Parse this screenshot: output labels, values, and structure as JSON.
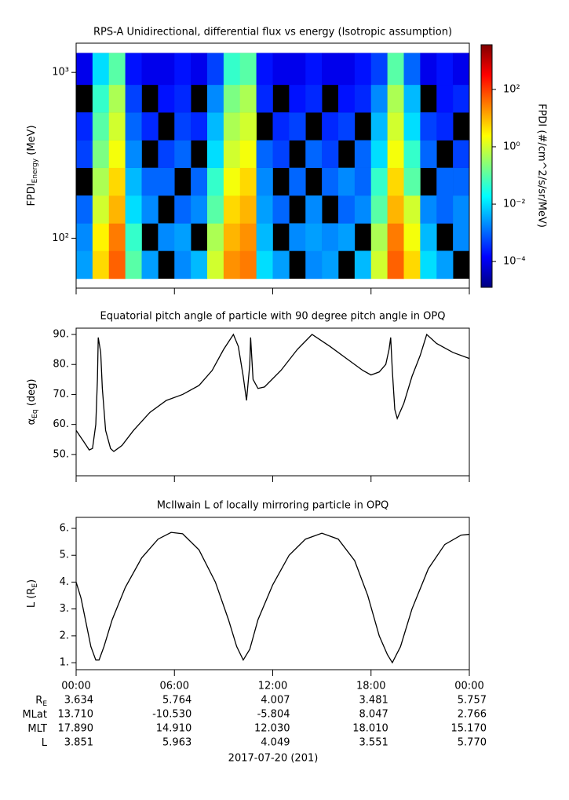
{
  "chart_data": [
    {
      "type": "heatmap",
      "title": "RPS-A Unidirectional, differential flux vs energy (Isotropic assumption)",
      "ylabel": "FPDI",
      "ylabel_sub": "Energy",
      "ylabel_tail": " (MeV)",
      "xlim": [
        0,
        24
      ],
      "xticks": [
        0,
        6,
        12,
        18,
        24
      ],
      "ylim": [
        50,
        1500
      ],
      "ylog": true,
      "yticks": [
        {
          "value": 100,
          "label": "10²"
        },
        {
          "value": 1000,
          "label": "10³"
        }
      ],
      "xbins": [
        0,
        1,
        2,
        3,
        4,
        5,
        6,
        7,
        8,
        9,
        10,
        11,
        12,
        13,
        14,
        15,
        16,
        17,
        18,
        19,
        20,
        21,
        22,
        23,
        24
      ],
      "ybins": [
        57,
        84,
        123,
        181,
        266,
        390,
        574,
        843,
        1310
      ],
      "z": [
        [
          0.003,
          5,
          50,
          0.1,
          0.003,
          null,
          0.002,
          0.005,
          1,
          20,
          30,
          0.01,
          0.003,
          null,
          0.002,
          0.003,
          null,
          0.005,
          1,
          50,
          5,
          0.01,
          0.003,
          null
        ],
        [
          0.002,
          3,
          30,
          0.05,
          null,
          0.002,
          0.003,
          null,
          0.5,
          10,
          20,
          0.005,
          null,
          0.002,
          0.003,
          0.002,
          0.003,
          null,
          0.5,
          30,
          2,
          0.005,
          null,
          0.002
        ],
        [
          0.001,
          1,
          10,
          0.01,
          0.002,
          null,
          0.001,
          0.002,
          0.1,
          5,
          10,
          0.003,
          0.001,
          null,
          0.002,
          null,
          0.001,
          0.002,
          0.1,
          10,
          1,
          0.002,
          0.001,
          0.002
        ],
        [
          null,
          0.5,
          5,
          0.005,
          0.001,
          0.001,
          null,
          0.001,
          0.05,
          2,
          5,
          0.002,
          null,
          0.001,
          null,
          0.001,
          0.002,
          0.001,
          0.05,
          5,
          0.1,
          null,
          0.001,
          0.001
        ],
        [
          0.0005,
          0.2,
          2,
          0.002,
          null,
          0.0005,
          0.001,
          null,
          0.01,
          1,
          2,
          0.001,
          0.0005,
          null,
          0.001,
          0.0005,
          null,
          0.001,
          0.01,
          2,
          0.05,
          0.001,
          null,
          0.0005
        ],
        [
          0.0003,
          0.1,
          1,
          0.001,
          0.0003,
          null,
          0.0005,
          0.0003,
          0.005,
          0.5,
          1,
          null,
          0.0003,
          0.0005,
          null,
          0.0003,
          0.0005,
          null,
          0.005,
          1,
          0.01,
          0.0005,
          0.0003,
          null
        ],
        [
          null,
          0.05,
          0.5,
          0.0005,
          null,
          0.0002,
          0.0003,
          null,
          0.002,
          0.2,
          0.5,
          0.0003,
          null,
          0.0002,
          0.0003,
          null,
          0.0002,
          0.0003,
          0.002,
          0.5,
          0.005,
          null,
          0.0002,
          0.0003
        ],
        [
          0.0001,
          0.01,
          0.1,
          0.0002,
          0.0001,
          0.0001,
          0.0002,
          0.0001,
          0.0005,
          0.05,
          0.1,
          0.0002,
          0.0001,
          0.0001,
          0.0002,
          0.0001,
          0.0001,
          0.0002,
          0.0005,
          0.1,
          0.001,
          0.0001,
          0.0002,
          0.0001
        ]
      ],
      "zlim": [
        1.26e-05,
        3600
      ],
      "zlog": true,
      "colormap": "jet",
      "zticks": [
        {
          "value": 0.0001,
          "label": "10⁻⁴"
        },
        {
          "value": 0.01,
          "label": "10⁻²"
        },
        {
          "value": 1,
          "label": "10⁰"
        },
        {
          "value": 100,
          "label": "10²"
        }
      ],
      "colorbar_label": "FPDI (#/cm^2/s/sr/MeV)"
    },
    {
      "type": "line",
      "title": "Equatorial pitch angle of particle with 90 degree pitch angle in OPQ",
      "ylabel": "α",
      "ylabel_sub": "Eq",
      "ylabel_tail": " (deg)",
      "xlim": [
        0,
        24
      ],
      "xticks": [
        0,
        6,
        12,
        18,
        24
      ],
      "ylim": [
        42.9,
        92.1
      ],
      "yticks": [
        {
          "value": 50,
          "label": "50."
        },
        {
          "value": 60,
          "label": "60."
        },
        {
          "value": 70,
          "label": "70."
        },
        {
          "value": 80,
          "label": "80."
        },
        {
          "value": 90,
          "label": "90."
        }
      ],
      "color": "#000000",
      "x": [
        0,
        0.5,
        0.8,
        1.0,
        1.2,
        1.3,
        1.35,
        1.5,
        1.6,
        1.8,
        2.1,
        2.3,
        2.8,
        3.5,
        4.5,
        5.5,
        6.5,
        7.5,
        8.3,
        9,
        9.6,
        9.9,
        10.2,
        10.4,
        10.6,
        10.65,
        10.8,
        11.1,
        11.5,
        12.5,
        13.5,
        14.4,
        15.5,
        16.5,
        17.5,
        18,
        18.5,
        18.9,
        19.1,
        19.2,
        19.3,
        19.45,
        19.6,
        20.0,
        20.5,
        21,
        21.4,
        22,
        23,
        24
      ],
      "values": [
        58,
        54,
        51.5,
        52,
        60,
        75,
        89,
        84,
        72,
        58,
        52,
        51,
        53,
        58,
        64,
        68,
        70,
        73,
        78,
        85,
        90,
        86,
        76,
        68,
        80,
        89,
        75,
        72,
        72.5,
        78,
        85,
        90,
        86,
        82,
        78,
        76.5,
        77.5,
        80,
        85,
        89,
        78,
        65,
        62,
        67,
        76,
        83,
        90,
        87,
        84,
        82
      ]
    },
    {
      "type": "line",
      "title": "McIlwain L of locally mirroring particle in OPQ",
      "ylabel": "L (R",
      "ylabel_sub": "E",
      "ylabel_tail": ")",
      "xlim": [
        0,
        24
      ],
      "xticks": [
        {
          "value": 0,
          "label": "00:00"
        },
        {
          "value": 6,
          "label": "06:00"
        },
        {
          "value": 12,
          "label": "12:00"
        },
        {
          "value": 18,
          "label": "18:00"
        },
        {
          "value": 24,
          "label": "00:00"
        }
      ],
      "ylim": [
        0.74,
        6.41
      ],
      "yticks": [
        {
          "value": 1,
          "label": "1."
        },
        {
          "value": 2,
          "label": "2."
        },
        {
          "value": 3,
          "label": "3."
        },
        {
          "value": 4,
          "label": "4."
        },
        {
          "value": 5,
          "label": "5."
        },
        {
          "value": 6,
          "label": "6."
        }
      ],
      "color": "#000000",
      "x": [
        0,
        0.3,
        0.6,
        0.9,
        1.2,
        1.4,
        1.7,
        2.2,
        3,
        4,
        5,
        5.8,
        6.5,
        7.5,
        8.5,
        9.3,
        9.8,
        10.2,
        10.6,
        11.1,
        12,
        13,
        14,
        15,
        16,
        17,
        17.8,
        18.5,
        19.0,
        19.3,
        19.8,
        20.5,
        21.5,
        22.5,
        23.5,
        24
      ],
      "values": [
        4.0,
        3.4,
        2.5,
        1.6,
        1.1,
        1.1,
        1.6,
        2.6,
        3.8,
        4.9,
        5.6,
        5.85,
        5.8,
        5.2,
        4.0,
        2.6,
        1.6,
        1.1,
        1.5,
        2.6,
        3.9,
        5.0,
        5.6,
        5.82,
        5.6,
        4.8,
        3.5,
        2.0,
        1.3,
        1.0,
        1.6,
        3.0,
        4.5,
        5.4,
        5.75,
        5.78
      ]
    }
  ],
  "ephemeris": {
    "rows": [
      {
        "label": "R",
        "sub": "E",
        "values": [
          "3.634",
          "5.764",
          "4.007",
          "3.481",
          "5.757"
        ]
      },
      {
        "label": "MLat",
        "values": [
          "13.710",
          "-10.530",
          "-5.804",
          "8.047",
          "2.766"
        ]
      },
      {
        "label": "MLT",
        "values": [
          "17.890",
          "14.910",
          "12.030",
          "18.010",
          "15.170"
        ]
      },
      {
        "label": "L",
        "values": [
          "3.851",
          "5.963",
          "4.049",
          "3.551",
          "5.770"
        ]
      }
    ],
    "date": "2017-07-20 (201)"
  }
}
